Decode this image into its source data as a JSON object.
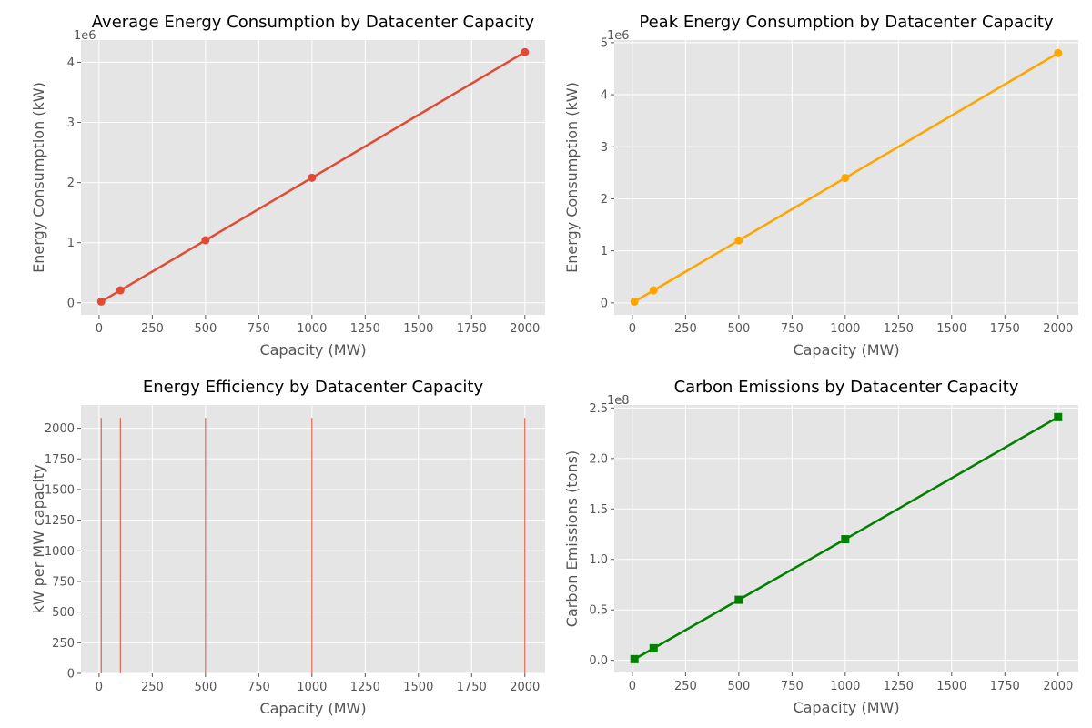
{
  "chart_data": [
    {
      "type": "line",
      "title": "Average Energy Consumption by Datacenter Capacity",
      "xlabel": "Capacity (MW)",
      "ylabel": "Energy Consumption (kW)",
      "xlim": [
        -85,
        2095
      ],
      "ylim": [
        -0.2,
        4.37
      ],
      "y_offset_label": "1e6",
      "xticks": [
        0,
        250,
        500,
        750,
        1000,
        1250,
        1500,
        1750,
        2000
      ],
      "yticks": [
        0,
        1,
        2,
        3,
        4
      ],
      "grid": true,
      "series": [
        {
          "x": [
            10,
            100,
            500,
            1000,
            2000
          ],
          "y": [
            0.021,
            0.208,
            1.04,
            2.08,
            4.17
          ],
          "color": "#e24a33",
          "marker": "circle"
        }
      ]
    },
    {
      "type": "line",
      "title": "Peak Energy Consumption by Datacenter Capacity",
      "xlabel": "Capacity (MW)",
      "ylabel": "Energy Consumption (kW)",
      "xlim": [
        -85,
        2095
      ],
      "ylim": [
        -0.23,
        5.05
      ],
      "y_offset_label": "1e6",
      "xticks": [
        0,
        250,
        500,
        750,
        1000,
        1250,
        1500,
        1750,
        2000
      ],
      "yticks": [
        0,
        1,
        2,
        3,
        4,
        5
      ],
      "grid": true,
      "series": [
        {
          "x": [
            10,
            100,
            500,
            1000,
            2000
          ],
          "y": [
            0.024,
            0.24,
            1.2,
            2.4,
            4.8
          ],
          "color": "#ffa500",
          "marker": "circle"
        }
      ]
    },
    {
      "type": "bar",
      "title": "Energy Efficiency by Datacenter Capacity",
      "xlabel": "Capacity (MW)",
      "ylabel": "kW per MW capacity",
      "xlim": [
        -85,
        2095
      ],
      "ylim": [
        0,
        2190
      ],
      "xticks": [
        0,
        250,
        500,
        750,
        1000,
        1250,
        1500,
        1750,
        2000
      ],
      "yticks": [
        0,
        250,
        500,
        750,
        1000,
        1250,
        1500,
        1750,
        2000
      ],
      "grid": true,
      "bar_width": 0.8,
      "series": [
        {
          "x": [
            10,
            100,
            500,
            1000,
            2000
          ],
          "y": [
            2085,
            2085,
            2085,
            2085,
            2085
          ],
          "color": "#e24a33"
        }
      ]
    },
    {
      "type": "line",
      "title": "Carbon Emissions by Datacenter Capacity",
      "xlabel": "Capacity (MW)",
      "ylabel": "Carbon Emissions (tons)",
      "xlim": [
        -85,
        2095
      ],
      "ylim": [
        -0.12,
        2.53
      ],
      "y_offset_label": "1e8",
      "xticks": [
        0,
        250,
        500,
        750,
        1000,
        1250,
        1500,
        1750,
        2000
      ],
      "yticks": [
        0.0,
        0.5,
        1.0,
        1.5,
        2.0,
        2.5
      ],
      "ytick_labels": [
        "0.0",
        "0.5",
        "1.0",
        "1.5",
        "2.0",
        "2.5"
      ],
      "grid": true,
      "series": [
        {
          "x": [
            10,
            100,
            500,
            1000,
            2000
          ],
          "y": [
            0.012,
            0.12,
            0.6,
            1.2,
            2.41
          ],
          "color": "#008000",
          "marker": "square"
        }
      ]
    }
  ]
}
